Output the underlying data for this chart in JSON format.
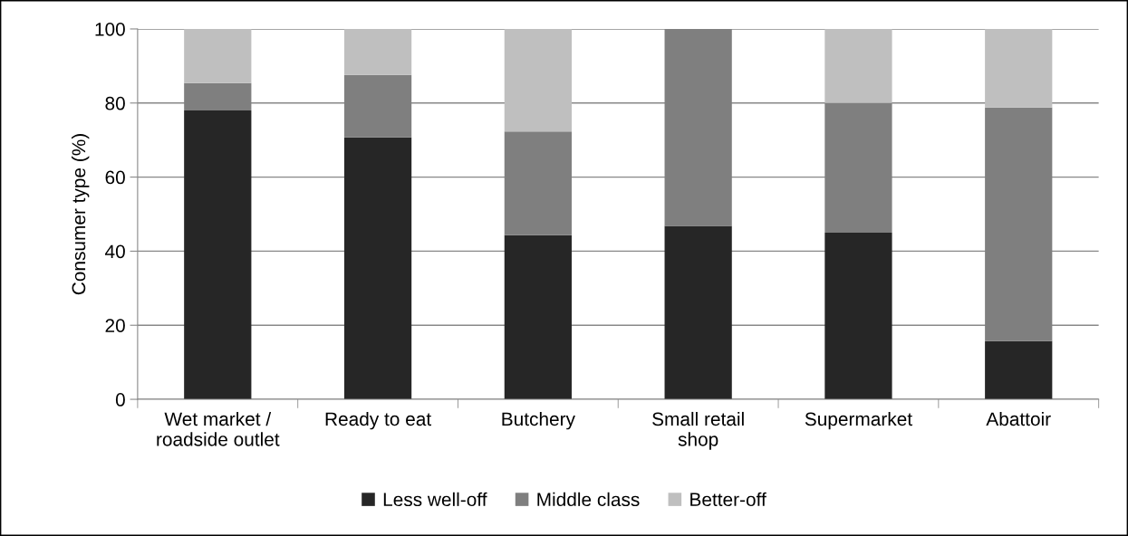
{
  "chart_data": {
    "type": "bar",
    "stacked": true,
    "ylabel": "Consumer type (%)",
    "categories": [
      "Wet market /\nroadside outlet",
      "Ready to eat",
      "Butchery",
      "Small retail\nshop",
      "Supermarket",
      "Abattoir"
    ],
    "series": [
      {
        "name": "Less well-off",
        "color": "#262626",
        "values": [
          78.0,
          70.7,
          44.3,
          46.8,
          45.0,
          15.7
        ]
      },
      {
        "name": "Middle class",
        "color": "#7f7f7f",
        "values": [
          7.4,
          16.9,
          28.0,
          53.2,
          35.0,
          63.1
        ]
      },
      {
        "name": "Better-off",
        "color": "#bfbfbf",
        "values": [
          14.6,
          12.4,
          27.7,
          0,
          20.0,
          21.2
        ]
      }
    ],
    "ylim": [
      0,
      100
    ],
    "yticks": [
      0,
      20,
      40,
      60,
      80,
      100
    ],
    "grid": "y",
    "legend": "bottom"
  }
}
